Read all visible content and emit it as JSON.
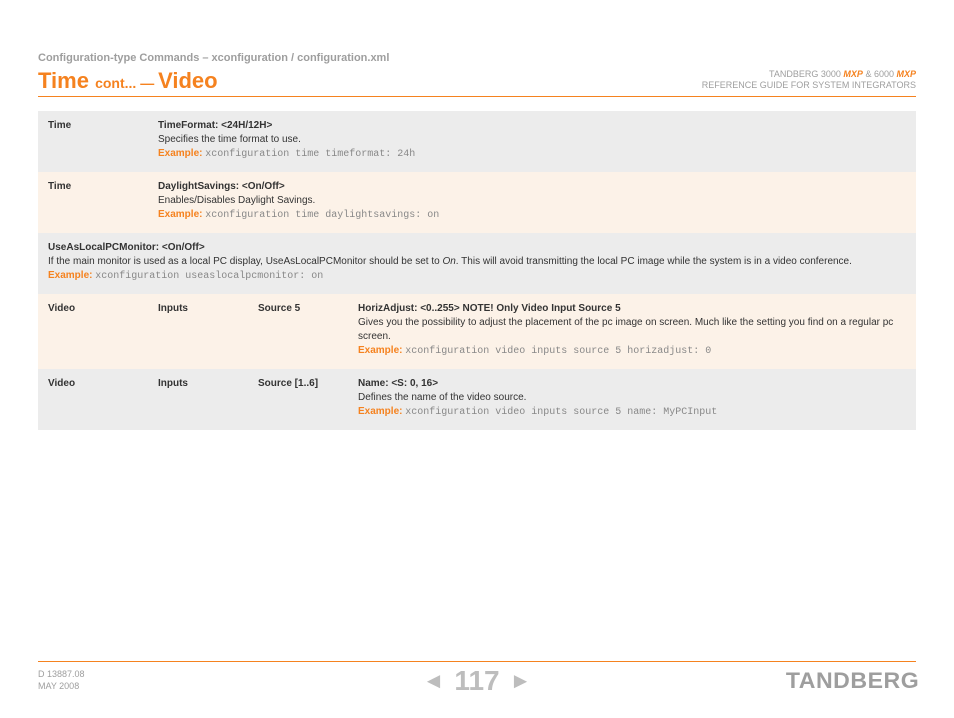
{
  "breadcrumb": "Configuration-type Commands – xconfiguration / configuration.xml",
  "title_main": "Time",
  "title_cont": "cont...",
  "title_sep": " — ",
  "title_section": "Video",
  "header_right_line1_a": "TANDBERG 3000",
  "header_right_line1_mxp": "MXP",
  "header_right_line1_b": " & 6000",
  "header_right_line2": "REFERENCE GUIDE FOR SYSTEM INTEGRATORS",
  "rows": [
    {
      "bg": "grey",
      "c1": "Time",
      "param": "TimeFormat: <24H/12H>",
      "desc": "Specifies the time format to use.",
      "example": "xconfiguration time timeformat: 24h"
    },
    {
      "bg": "peach",
      "c1": "Time",
      "param": "DaylightSavings: <On/Off>",
      "desc": "Enables/Disables Daylight Savings.",
      "example": "xconfiguration time daylightsavings: on"
    }
  ],
  "fullrow": {
    "bg": "grey",
    "param": "UseAsLocalPCMonitor: <On/Off>",
    "desc_a": "If the main monitor is used as a local PC display, UseAsLocalPCMonitor should be set to ",
    "desc_i": "On",
    "desc_b": ". This will avoid transmitting the local PC image while the system is in a video conference.",
    "example": "xconfiguration useaslocalpcmonitor: on"
  },
  "rows2": [
    {
      "bg": "peach",
      "c1": "Video",
      "c2": "Inputs",
      "c3": "Source 5",
      "param": "HorizAdjust: <0..255> NOTE! Only Video Input Source 5",
      "desc": "Gives you the possibility to adjust the placement of the pc image on screen. Much like the setting you find on a regular pc screen.",
      "example": "xconfiguration video inputs source 5 horizadjust: 0"
    },
    {
      "bg": "grey",
      "c1": "Video",
      "c2": "Inputs",
      "c3": "Source [1..6]",
      "param": "Name: <S: 0, 16>",
      "desc": "Defines the name of the video source.",
      "example": "xconfiguration video inputs source 5 name: MyPCInput"
    }
  ],
  "example_label": "Example:",
  "footer": {
    "doc": "D 13887.08",
    "date": "MAY 2008",
    "page": "117",
    "brand": "TANDBERG"
  },
  "colors": {
    "accent": "#f5821f",
    "grey_bg": "#ececec",
    "peach_bg": "#fcf2e8",
    "muted": "#9e9e9e"
  }
}
